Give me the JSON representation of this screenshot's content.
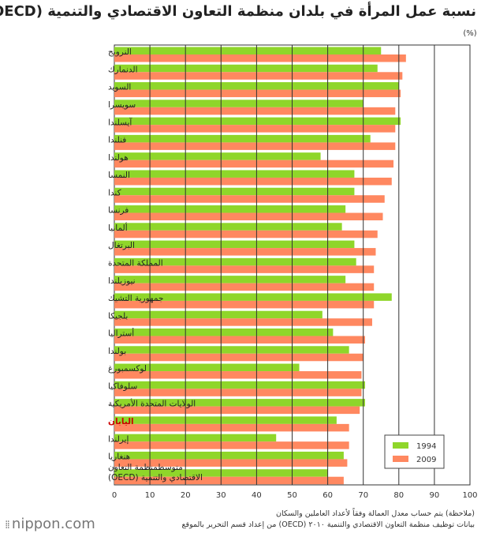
{
  "title": "نسبة عمل المرأة في بلدان منظمة التعاون الاقتصادي والتنمية  (OECD)",
  "notes": [
    "(ملاحظة) يتم حساب معدل العمالة وفقاً لأعداد العاملين والسكان",
    "بيانات توظيف منظمة التعاون الاقتصادي والتنمية ٢٠١٠ (OECD) من إعداد قسم التحرير بالموقع"
  ],
  "logo": {
    "text": "nippon.com",
    "dots": "⁞⁞"
  },
  "colors": {
    "series_1994": "#8fd62a",
    "series_2009": "#ff8860",
    "highlight": "#cc0000",
    "grid": "#333333"
  },
  "chart_data": {
    "type": "bar",
    "orientation": "horizontal",
    "unit_label": "(%)",
    "xlim": [
      0,
      100
    ],
    "xticks": [
      "0",
      "10",
      "20",
      "30",
      "40",
      "50",
      "60",
      "70",
      "80",
      "90",
      "100"
    ],
    "grid": "vertical lines at 10-unit intervals",
    "legend_position": "bottom-right",
    "categories": [
      "النرويج",
      "الدنمارك",
      "السويد",
      "سويسرا",
      "آيسلندا",
      "فنلندا",
      "هولندا",
      "النمسا",
      "كندا",
      "فرنسا",
      "ألمانيا",
      "البرتغال",
      "المملكة المتحدة",
      "نيوزيلندا",
      "جمهورية التشيك",
      "بلجيكا",
      "أستراليا",
      "بولندا",
      "لوكسمبورغ",
      "سلوفاكيا",
      "الولايات المتحدة الأمريكية",
      "اليابان",
      "إيرلندا",
      "هنغاريا",
      "متوسط منظمة التعاون الاقتصادي والتنمية (OECD)"
    ],
    "category_lines": [
      [
        "النرويج"
      ],
      [
        "الدنمارك"
      ],
      [
        "السويد"
      ],
      [
        "سويسرا"
      ],
      [
        "آيسلندا"
      ],
      [
        "فنلندا"
      ],
      [
        "هولندا"
      ],
      [
        "النمسا"
      ],
      [
        "كندا"
      ],
      [
        "فرنسا"
      ],
      [
        "ألمانيا"
      ],
      [
        "البرتغال"
      ],
      [
        "المملكة المتحدة"
      ],
      [
        "نيوزيلندا"
      ],
      [
        "جمهورية التشيك"
      ],
      [
        "بلجيكا"
      ],
      [
        "أستراليا"
      ],
      [
        "بولندا"
      ],
      [
        "لوكسمبورغ"
      ],
      [
        "سلوفاكيا"
      ],
      [
        "الولايات المتحدة الأمريكية"
      ],
      [
        "اليابان"
      ],
      [
        "إيرلندا"
      ],
      [
        "هنغاريا"
      ],
      [
        "متوسطمنظمة التعاون",
        "الاقتصادي والتنمية (OECD)"
      ]
    ],
    "highlight_category": "اليابان",
    "series": [
      {
        "name": "1994",
        "values": [
          75,
          74,
          80,
          70,
          80.5,
          72,
          58,
          67.5,
          67.5,
          65,
          64,
          67.5,
          68,
          65,
          78,
          58.5,
          61.5,
          66,
          52,
          70.5,
          70.5,
          62.5,
          45.5,
          64.5,
          60
        ]
      },
      {
        "name": "2009",
        "values": [
          82,
          81,
          80.5,
          79,
          79,
          79,
          78.5,
          78,
          76,
          75.5,
          74,
          73.5,
          73,
          73,
          73,
          72.5,
          70.5,
          70,
          69.5,
          69.5,
          69,
          66,
          66,
          65.5,
          64.5
        ]
      }
    ]
  }
}
